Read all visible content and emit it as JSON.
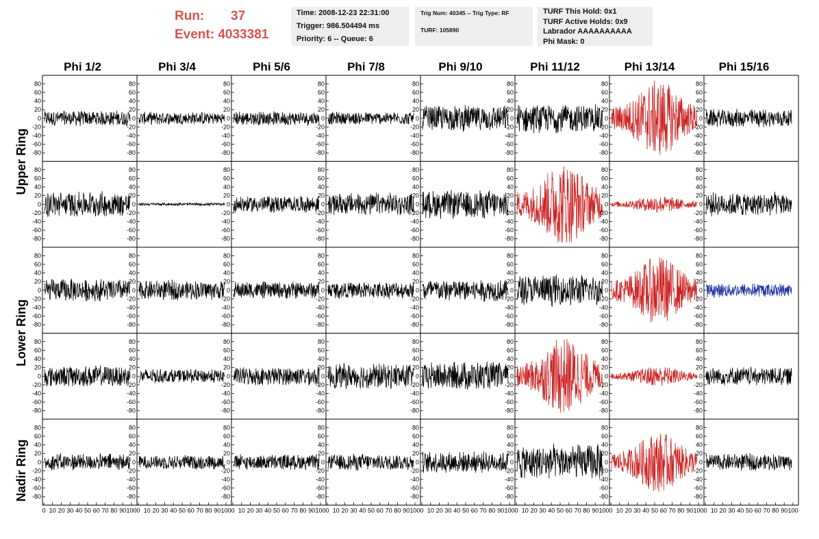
{
  "header": {
    "run_label": "Run:",
    "run_value": "37",
    "event_label": "Event:",
    "event_value": "4033381",
    "time": "Time: 2008-12-23 22:31:00",
    "trigger": "Trigger: 986.504494 ms",
    "priority": "Priority: 6 -- Queue: 6",
    "trig_info": "Trig Num: 40345 -- Trig Type: RF",
    "turf": "TURF: 105890",
    "turf_hold": "TURF This Hold: 0x1",
    "turf_active": "TURF Active Holds: 0x9",
    "labrador": "Labrador AAAAAAAAAA",
    "phi_mask": "Phi Mask: 0"
  },
  "columns": [
    "Phi 1/2",
    "Phi 3/4",
    "Phi 5/6",
    "Phi 7/8",
    "Phi 9/10",
    "Phi 11/12",
    "Phi 13/14",
    "Phi 15/16"
  ],
  "ring_labels": [
    "Upper Ring",
    "Lower Ring",
    "Nadir Ring"
  ],
  "y_ticks": [
    "80",
    "60",
    "40",
    "20",
    "0",
    "-20",
    "-40",
    "-60",
    "-80"
  ],
  "x_tick_labels": [
    "0",
    "10",
    "20",
    "30",
    "40",
    "50",
    "60",
    "70",
    "80",
    "90",
    "100"
  ],
  "colors": {
    "normal": "#000000",
    "highlight": "#cc2222",
    "blue": "#2030a0",
    "header_red": "#d9534f",
    "box_bg": "#eeeeee"
  },
  "chart_data": {
    "type": "line",
    "title": "",
    "x_range": [
      0,
      100
    ],
    "y_range": [
      -90,
      90
    ],
    "grid": false,
    "panels": [
      [
        {
          "color": "normal",
          "amp": 11
        },
        {
          "color": "normal",
          "amp": 9
        },
        {
          "color": "normal",
          "amp": 10
        },
        {
          "color": "normal",
          "amp": 9
        },
        {
          "color": "normal",
          "amp": 18
        },
        {
          "color": "normal",
          "amp": 20
        },
        {
          "color": "highlight",
          "amp": 45
        },
        {
          "color": "normal",
          "amp": 13
        }
      ],
      [
        {
          "color": "normal",
          "amp": 18
        },
        {
          "color": "normal",
          "amp": 2
        },
        {
          "color": "normal",
          "amp": 12
        },
        {
          "color": "normal",
          "amp": 16
        },
        {
          "color": "normal",
          "amp": 20
        },
        {
          "color": "highlight",
          "amp": 50
        },
        {
          "color": "highlight",
          "amp": 10
        },
        {
          "color": "normal",
          "amp": 17
        }
      ],
      [
        {
          "color": "normal",
          "amp": 16
        },
        {
          "color": "normal",
          "amp": 14
        },
        {
          "color": "normal",
          "amp": 12
        },
        {
          "color": "normal",
          "amp": 12
        },
        {
          "color": "normal",
          "amp": 16
        },
        {
          "color": "normal",
          "amp": 22
        },
        {
          "color": "highlight",
          "amp": 40
        },
        {
          "color": "blue",
          "amp": 10
        }
      ],
      [
        {
          "color": "normal",
          "amp": 15
        },
        {
          "color": "normal",
          "amp": 10
        },
        {
          "color": "normal",
          "amp": 13
        },
        {
          "color": "normal",
          "amp": 18
        },
        {
          "color": "normal",
          "amp": 20
        },
        {
          "color": "highlight",
          "amp": 45
        },
        {
          "color": "highlight",
          "amp": 12
        },
        {
          "color": "normal",
          "amp": 13
        }
      ],
      [
        {
          "color": "normal",
          "amp": 12
        },
        {
          "color": "normal",
          "amp": 10
        },
        {
          "color": "normal",
          "amp": 11
        },
        {
          "color": "normal",
          "amp": 12
        },
        {
          "color": "normal",
          "amp": 15
        },
        {
          "color": "normal",
          "amp": 25
        },
        {
          "color": "highlight",
          "amp": 35
        },
        {
          "color": "normal",
          "amp": 12
        }
      ]
    ]
  }
}
